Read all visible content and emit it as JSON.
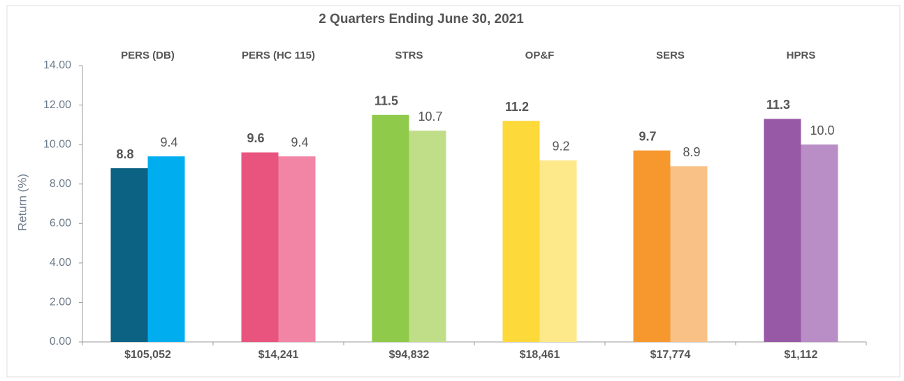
{
  "chart_data": {
    "type": "bar",
    "title": "2 Quarters Ending June 30, 2021",
    "y_label": "Return (%)",
    "categories": [
      "PERS (DB)",
      "PERS (HC 115)",
      "STRS",
      "OP&F",
      "SERS",
      "HPRS"
    ],
    "bottom_labels": [
      "$105,052",
      "$14,241",
      "$94,832",
      "$18,461",
      "$17,774",
      "$1,112"
    ],
    "series": [
      {
        "colors": [
          "#0c6283",
          "#e9547f",
          "#8fca4a",
          "#fdd93a",
          "#f7982f",
          "#9758a6"
        ],
        "values": [
          8.8,
          9.6,
          11.5,
          11.2,
          9.7,
          11.3
        ],
        "value_labels": [
          "8.8",
          "9.6",
          "11.5",
          "11.2",
          "9.7",
          "11.3"
        ]
      },
      {
        "colors": [
          "#00aeef",
          "#f285a5",
          "#c0dd88",
          "#fde98a",
          "#f9c185",
          "#b98dc5"
        ],
        "values": [
          9.4,
          9.4,
          10.7,
          9.2,
          8.9,
          10.0
        ],
        "value_labels": [
          "9.4",
          "9.4",
          "10.7",
          "9.2",
          "8.9",
          "10.0"
        ]
      }
    ],
    "ylim": [
      0,
      14
    ],
    "yticks": [
      {
        "value": 0,
        "label": "0.00"
      },
      {
        "value": 2,
        "label": "2.00"
      },
      {
        "value": 4,
        "label": "4.00"
      },
      {
        "value": 6,
        "label": "6.00"
      },
      {
        "value": 8,
        "label": "8.00"
      },
      {
        "value": 10,
        "label": "10.00"
      },
      {
        "value": 12,
        "label": "12.00"
      },
      {
        "value": 14,
        "label": "14.00"
      }
    ],
    "grid": false
  }
}
